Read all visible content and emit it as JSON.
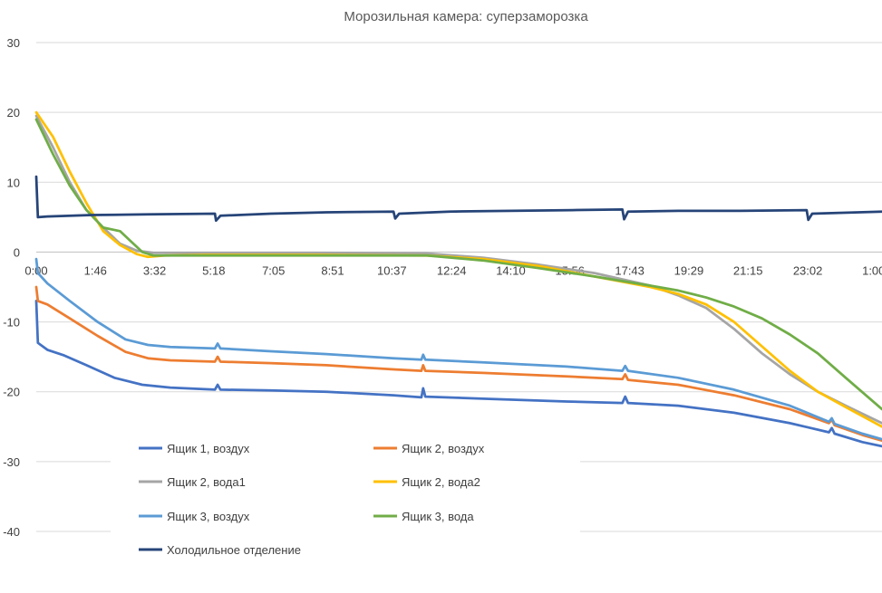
{
  "chart_data": {
    "type": "line",
    "title": "Морозильная камера: суперзаморозка",
    "xlabel": "",
    "ylabel": "",
    "ylim": [
      -40,
      30
    ],
    "yticks": [
      30,
      20,
      10,
      0,
      -10,
      -20,
      -30,
      -40
    ],
    "xlim": [
      0,
      1515
    ],
    "xticks": [
      {
        "label": "0:00",
        "x": 0
      },
      {
        "label": "1:46",
        "x": 106
      },
      {
        "label": "3:32",
        "x": 212
      },
      {
        "label": "5:18",
        "x": 318
      },
      {
        "label": "7:05",
        "x": 425
      },
      {
        "label": "8:51",
        "x": 531
      },
      {
        "label": "10:37",
        "x": 637
      },
      {
        "label": "12:24",
        "x": 744
      },
      {
        "label": "14:10",
        "x": 850
      },
      {
        "label": "15:56",
        "x": 956
      },
      {
        "label": "17:43",
        "x": 1063
      },
      {
        "label": "19:29",
        "x": 1169
      },
      {
        "label": "21:15",
        "x": 1275
      },
      {
        "label": "23:02",
        "x": 1382
      },
      {
        "label": "1:00",
        "x": 1500
      }
    ],
    "grid": true,
    "legend_position": "bottom-left",
    "series": [
      {
        "name": "Ящик 1, воздух",
        "color": "#4472c4",
        "points": [
          [
            0,
            -7
          ],
          [
            3,
            -13
          ],
          [
            20,
            -14
          ],
          [
            50,
            -14.8
          ],
          [
            90,
            -16.2
          ],
          [
            140,
            -18
          ],
          [
            190,
            -19
          ],
          [
            240,
            -19.4
          ],
          [
            320,
            -19.7
          ],
          [
            325,
            -19
          ],
          [
            330,
            -19.7
          ],
          [
            420,
            -19.8
          ],
          [
            520,
            -20
          ],
          [
            640,
            -20.5
          ],
          [
            690,
            -20.8
          ],
          [
            693,
            -19.5
          ],
          [
            697,
            -20.7
          ],
          [
            800,
            -21
          ],
          [
            950,
            -21.4
          ],
          [
            1050,
            -21.6
          ],
          [
            1055,
            -20.7
          ],
          [
            1060,
            -21.6
          ],
          [
            1150,
            -22
          ],
          [
            1250,
            -23
          ],
          [
            1350,
            -24.5
          ],
          [
            1420,
            -25.8
          ],
          [
            1425,
            -25.2
          ],
          [
            1430,
            -26
          ],
          [
            1480,
            -27.2
          ],
          [
            1515,
            -27.8
          ]
        ]
      },
      {
        "name": "Ящик 2, воздух",
        "color": "#ed7d31",
        "points": [
          [
            0,
            -5
          ],
          [
            3,
            -7
          ],
          [
            20,
            -7.5
          ],
          [
            60,
            -9.5
          ],
          [
            110,
            -12
          ],
          [
            160,
            -14.3
          ],
          [
            200,
            -15.2
          ],
          [
            240,
            -15.5
          ],
          [
            320,
            -15.7
          ],
          [
            325,
            -15
          ],
          [
            330,
            -15.7
          ],
          [
            420,
            -15.9
          ],
          [
            520,
            -16.2
          ],
          [
            640,
            -16.8
          ],
          [
            690,
            -17
          ],
          [
            693,
            -16.2
          ],
          [
            697,
            -17
          ],
          [
            800,
            -17.3
          ],
          [
            950,
            -17.8
          ],
          [
            1050,
            -18.2
          ],
          [
            1055,
            -17.5
          ],
          [
            1060,
            -18.3
          ],
          [
            1150,
            -19
          ],
          [
            1250,
            -20.5
          ],
          [
            1350,
            -22.5
          ],
          [
            1420,
            -24.5
          ],
          [
            1425,
            -24
          ],
          [
            1430,
            -24.8
          ],
          [
            1480,
            -26.2
          ],
          [
            1515,
            -27
          ]
        ]
      },
      {
        "name": "Ящик 2, вода1",
        "color": "#a5a5a5",
        "points": [
          [
            0,
            19.5
          ],
          [
            30,
            15
          ],
          [
            60,
            10
          ],
          [
            90,
            6
          ],
          [
            120,
            3.5
          ],
          [
            150,
            1.2
          ],
          [
            180,
            0.2
          ],
          [
            210,
            -0.1
          ],
          [
            300,
            -0.1
          ],
          [
            500,
            -0.1
          ],
          [
            700,
            -0.2
          ],
          [
            800,
            -0.8
          ],
          [
            900,
            -1.8
          ],
          [
            1000,
            -3
          ],
          [
            1100,
            -4.8
          ],
          [
            1150,
            -6.2
          ],
          [
            1200,
            -8
          ],
          [
            1250,
            -11
          ],
          [
            1300,
            -14.5
          ],
          [
            1350,
            -17.5
          ],
          [
            1400,
            -20
          ],
          [
            1450,
            -22
          ],
          [
            1515,
            -24.5
          ]
        ]
      },
      {
        "name": "Ящик 2, вода2",
        "color": "#ffc000",
        "points": [
          [
            0,
            20
          ],
          [
            30,
            16.5
          ],
          [
            60,
            11.5
          ],
          [
            90,
            7
          ],
          [
            120,
            3
          ],
          [
            150,
            1
          ],
          [
            180,
            -0.3
          ],
          [
            200,
            -0.7
          ],
          [
            230,
            -0.5
          ],
          [
            300,
            -0.4
          ],
          [
            500,
            -0.4
          ],
          [
            700,
            -0.5
          ],
          [
            800,
            -1
          ],
          [
            900,
            -2
          ],
          [
            1000,
            -3.5
          ],
          [
            1100,
            -5
          ],
          [
            1150,
            -6
          ],
          [
            1200,
            -7.5
          ],
          [
            1250,
            -10
          ],
          [
            1300,
            -13.5
          ],
          [
            1350,
            -17
          ],
          [
            1400,
            -20
          ],
          [
            1450,
            -22.2
          ],
          [
            1515,
            -25
          ]
        ]
      },
      {
        "name": "Ящик 3, воздух",
        "color": "#5b9bd5",
        "points": [
          [
            0,
            -1
          ],
          [
            3,
            -3
          ],
          [
            20,
            -4.5
          ],
          [
            60,
            -7
          ],
          [
            110,
            -10
          ],
          [
            160,
            -12.5
          ],
          [
            200,
            -13.3
          ],
          [
            240,
            -13.6
          ],
          [
            320,
            -13.8
          ],
          [
            325,
            -13.1
          ],
          [
            330,
            -13.8
          ],
          [
            420,
            -14.2
          ],
          [
            520,
            -14.6
          ],
          [
            640,
            -15.2
          ],
          [
            690,
            -15.4
          ],
          [
            693,
            -14.7
          ],
          [
            697,
            -15.4
          ],
          [
            800,
            -15.8
          ],
          [
            950,
            -16.4
          ],
          [
            1050,
            -17
          ],
          [
            1055,
            -16.3
          ],
          [
            1060,
            -17
          ],
          [
            1150,
            -18
          ],
          [
            1250,
            -19.7
          ],
          [
            1350,
            -22
          ],
          [
            1420,
            -24.3
          ],
          [
            1425,
            -23.8
          ],
          [
            1430,
            -24.6
          ],
          [
            1480,
            -26
          ],
          [
            1515,
            -26.8
          ]
        ]
      },
      {
        "name": "Ящик 3, вода",
        "color": "#70ad47",
        "points": [
          [
            0,
            19
          ],
          [
            30,
            14
          ],
          [
            60,
            9.5
          ],
          [
            90,
            6
          ],
          [
            120,
            3.5
          ],
          [
            150,
            3
          ],
          [
            170,
            1.5
          ],
          [
            190,
            0
          ],
          [
            210,
            -0.5
          ],
          [
            300,
            -0.5
          ],
          [
            500,
            -0.5
          ],
          [
            700,
            -0.5
          ],
          [
            800,
            -1.2
          ],
          [
            900,
            -2.3
          ],
          [
            1000,
            -3.5
          ],
          [
            1100,
            -4.8
          ],
          [
            1150,
            -5.5
          ],
          [
            1200,
            -6.5
          ],
          [
            1250,
            -7.8
          ],
          [
            1300,
            -9.5
          ],
          [
            1350,
            -11.8
          ],
          [
            1400,
            -14.5
          ],
          [
            1450,
            -18
          ],
          [
            1515,
            -22.5
          ]
        ]
      },
      {
        "name": "Холодильное отделение",
        "color": "#264478",
        "points": [
          [
            0,
            10.8
          ],
          [
            3,
            5
          ],
          [
            20,
            5.1
          ],
          [
            100,
            5.3
          ],
          [
            200,
            5.4
          ],
          [
            320,
            5.5
          ],
          [
            322,
            4.5
          ],
          [
            330,
            5.2
          ],
          [
            420,
            5.5
          ],
          [
            520,
            5.7
          ],
          [
            640,
            5.8
          ],
          [
            643,
            4.8
          ],
          [
            650,
            5.5
          ],
          [
            740,
            5.8
          ],
          [
            850,
            5.9
          ],
          [
            960,
            6
          ],
          [
            1050,
            6.1
          ],
          [
            1053,
            4.7
          ],
          [
            1060,
            5.8
          ],
          [
            1150,
            5.9
          ],
          [
            1260,
            5.9
          ],
          [
            1380,
            6
          ],
          [
            1383,
            4.6
          ],
          [
            1390,
            5.5
          ],
          [
            1515,
            5.8
          ]
        ]
      }
    ]
  }
}
